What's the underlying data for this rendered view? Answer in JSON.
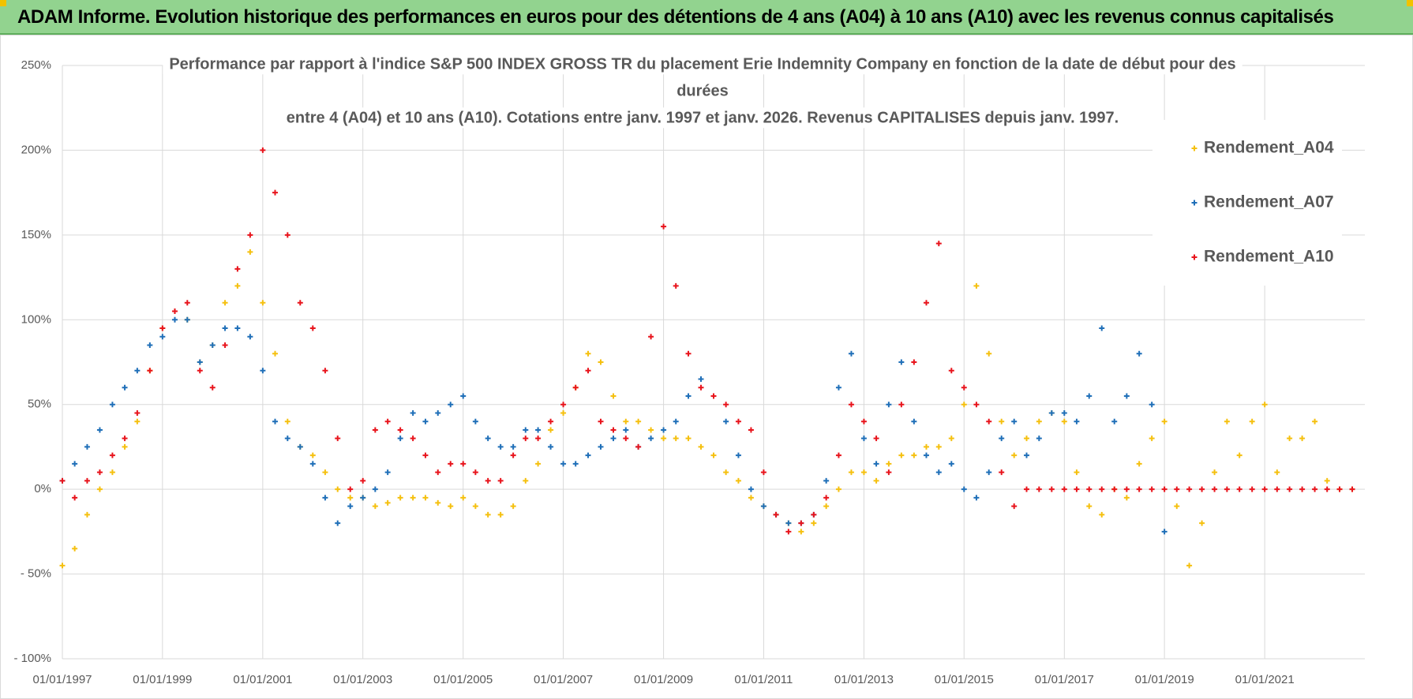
{
  "chart_data": {
    "type": "scatter",
    "title": "ADAM Informe. Evolution historique des performances en euros pour des détentions de 4 ans (A04) à 10 ans (A10) avec les revenus connus capitalisés",
    "subtitle_lines": [
      "Performance par rapport à l'indice S&P 500 INDEX GROSS TR  du placement Erie Indemnity Company en fonction de la date de début pour des",
      "durées",
      "entre 4 (A04) et 10 ans (A10).  Cotations entre janv. 1997 et janv. 2026.  Revenus CAPITALISES  depuis janv. 1997."
    ],
    "x": [
      "1997-01-01",
      "1997-04-01",
      "1997-07-01",
      "1997-10-01",
      "1998-01-01",
      "1998-04-01",
      "1998-07-01",
      "1998-10-01",
      "1999-01-01",
      "1999-04-01",
      "1999-07-01",
      "1999-10-01",
      "2000-01-01",
      "2000-04-01",
      "2000-07-01",
      "2000-10-01",
      "2001-01-01",
      "2001-04-01",
      "2001-07-01",
      "2001-10-01",
      "2002-01-01",
      "2002-04-01",
      "2002-07-01",
      "2002-10-01",
      "2003-01-01",
      "2003-04-01",
      "2003-07-01",
      "2003-10-01",
      "2004-01-01",
      "2004-04-01",
      "2004-07-01",
      "2004-10-01",
      "2005-01-01",
      "2005-04-01",
      "2005-07-01",
      "2005-10-01",
      "2006-01-01",
      "2006-04-01",
      "2006-07-01",
      "2006-10-01",
      "2007-01-01",
      "2007-04-01",
      "2007-07-01",
      "2007-10-01",
      "2008-01-01",
      "2008-04-01",
      "2008-07-01",
      "2008-10-01",
      "2009-01-01",
      "2009-04-01",
      "2009-07-01",
      "2009-10-01",
      "2010-01-01",
      "2010-04-01",
      "2010-07-01",
      "2010-10-01",
      "2011-01-01",
      "2011-04-01",
      "2011-07-01",
      "2011-10-01",
      "2012-01-01",
      "2012-04-01",
      "2012-07-01",
      "2012-10-01",
      "2013-01-01",
      "2013-04-01",
      "2013-07-01",
      "2013-10-01",
      "2014-01-01",
      "2014-04-01",
      "2014-07-01",
      "2014-10-01",
      "2015-01-01",
      "2015-04-01",
      "2015-07-01",
      "2015-10-01",
      "2016-01-01",
      "2016-04-01",
      "2016-07-01",
      "2016-10-01",
      "2017-01-01",
      "2017-04-01",
      "2017-07-01",
      "2017-10-01",
      "2018-01-01",
      "2018-04-01",
      "2018-07-01",
      "2018-10-01",
      "2019-01-01",
      "2019-04-01",
      "2019-07-01",
      "2019-10-01",
      "2020-01-01",
      "2020-04-01",
      "2020-07-01",
      "2020-10-01",
      "2021-01-01",
      "2021-04-01",
      "2021-07-01",
      "2021-10-01",
      "2022-01-01",
      "2022-04-01",
      "2022-07-01",
      "2022-10-01"
    ],
    "series": [
      {
        "name": "Rendement_A04",
        "color": "#f5c00f",
        "values": [
          -45,
          -35,
          -15,
          0,
          10,
          25,
          40,
          70,
          95,
          105,
          100,
          75,
          85,
          110,
          120,
          140,
          110,
          80,
          40,
          25,
          20,
          10,
          0,
          -5,
          -5,
          -10,
          -8,
          -5,
          -5,
          -5,
          -8,
          -10,
          -5,
          -10,
          -15,
          -15,
          -10,
          5,
          15,
          35,
          45,
          60,
          80,
          75,
          55,
          40,
          40,
          35,
          30,
          30,
          30,
          25,
          20,
          10,
          5,
          -5,
          -10,
          -15,
          -20,
          -25,
          -20,
          -10,
          0,
          10,
          10,
          5,
          15,
          20,
          20,
          25,
          25,
          30,
          50,
          120,
          80,
          40,
          20,
          30,
          40,
          45,
          40,
          10,
          -10,
          -15,
          0,
          -5,
          15,
          30,
          40,
          -10,
          -45,
          -20,
          10,
          40,
          20,
          40,
          50,
          10,
          30,
          30,
          40,
          5,
          0,
          0
        ]
      },
      {
        "name": "Rendement_A07",
        "color": "#1f6fb8",
        "values": [
          5,
          15,
          25,
          35,
          50,
          60,
          70,
          85,
          90,
          100,
          100,
          75,
          85,
          95,
          95,
          90,
          70,
          40,
          30,
          25,
          15,
          -5,
          -20,
          -10,
          -5,
          0,
          10,
          30,
          45,
          40,
          45,
          50,
          55,
          40,
          30,
          25,
          25,
          35,
          35,
          25,
          15,
          15,
          20,
          25,
          30,
          35,
          25,
          30,
          35,
          40,
          55,
          65,
          55,
          40,
          20,
          0,
          -10,
          -15,
          -20,
          -20,
          -15,
          5,
          60,
          80,
          30,
          15,
          50,
          75,
          40,
          20,
          10,
          15,
          0,
          -5,
          10,
          30,
          40,
          20,
          30,
          45,
          45,
          40,
          55,
          95,
          40,
          55,
          80,
          50,
          -25,
          null,
          null,
          null,
          null,
          null,
          null,
          null,
          null,
          null,
          null,
          null,
          null,
          null,
          null,
          null
        ]
      },
      {
        "name": "Rendement_A10",
        "color": "#e8141c",
        "values": [
          5,
          -5,
          5,
          10,
          20,
          30,
          45,
          70,
          95,
          105,
          110,
          70,
          60,
          85,
          130,
          150,
          200,
          175,
          150,
          110,
          95,
          70,
          30,
          0,
          5,
          35,
          40,
          35,
          30,
          20,
          10,
          15,
          15,
          10,
          5,
          5,
          20,
          30,
          30,
          40,
          50,
          60,
          70,
          40,
          35,
          30,
          25,
          90,
          155,
          120,
          80,
          60,
          55,
          50,
          40,
          35,
          10,
          -15,
          -25,
          -20,
          -15,
          -5,
          20,
          50,
          40,
          30,
          10,
          50,
          75,
          110,
          145,
          70,
          60,
          50,
          40,
          10,
          -10,
          0,
          0,
          0,
          0,
          0,
          0,
          0,
          0,
          0,
          0,
          0,
          0,
          0,
          0,
          0,
          0,
          0,
          0,
          0,
          0,
          0,
          0,
          0,
          0,
          0,
          0,
          0
        ]
      }
    ],
    "xlim": [
      "1997-01-01",
      "2023-01-01"
    ],
    "xticks": [
      {
        "value": "1997-01-01",
        "label": "01/01/1997"
      },
      {
        "value": "1999-01-01",
        "label": "01/01/1999"
      },
      {
        "value": "2001-01-01",
        "label": "01/01/2001"
      },
      {
        "value": "2003-01-01",
        "label": "01/01/2003"
      },
      {
        "value": "2005-01-01",
        "label": "01/01/2005"
      },
      {
        "value": "2007-01-01",
        "label": "01/01/2007"
      },
      {
        "value": "2009-01-01",
        "label": "01/01/2009"
      },
      {
        "value": "2011-01-01",
        "label": "01/01/2011"
      },
      {
        "value": "2013-01-01",
        "label": "01/01/2013"
      },
      {
        "value": "2015-01-01",
        "label": "01/01/2015"
      },
      {
        "value": "2017-01-01",
        "label": "01/01/2017"
      },
      {
        "value": "2019-01-01",
        "label": "01/01/2019"
      },
      {
        "value": "2021-01-01",
        "label": "01/01/2021"
      }
    ],
    "ylim": [
      -100,
      250
    ],
    "yticks": [
      {
        "value": -100,
        "label": "- 100%"
      },
      {
        "value": -50,
        "label": "- 50%"
      },
      {
        "value": 0,
        "label": "0%"
      },
      {
        "value": 50,
        "label": "50%"
      },
      {
        "value": 100,
        "label": "100%"
      },
      {
        "value": 150,
        "label": "150%"
      },
      {
        "value": 200,
        "label": "200%"
      },
      {
        "value": 250,
        "label": "250%"
      }
    ],
    "grid": true,
    "legend": "upper right"
  }
}
